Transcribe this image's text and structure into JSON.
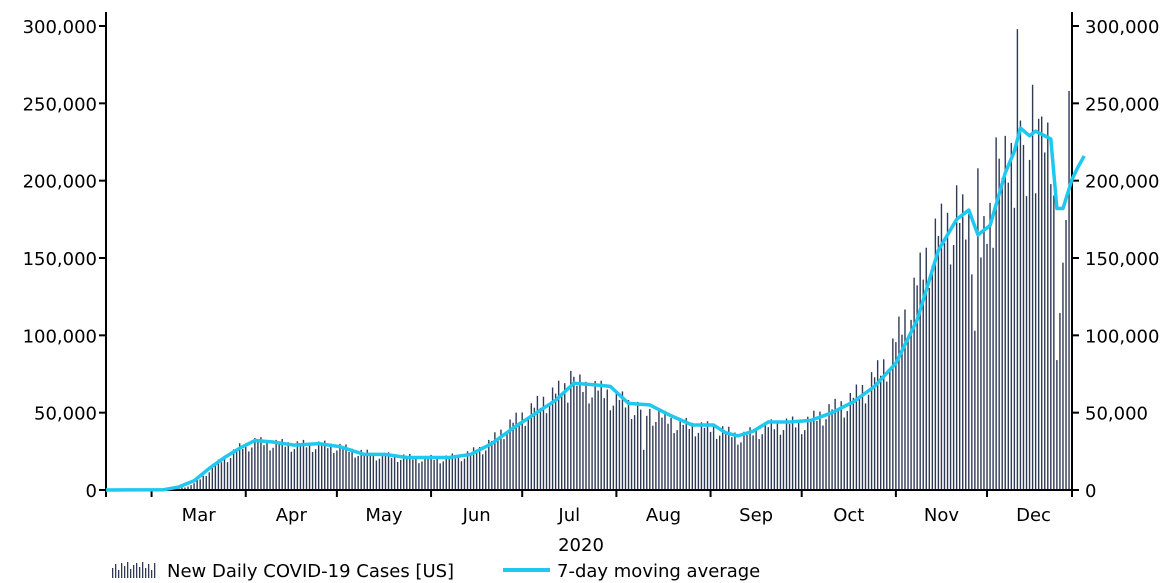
{
  "chart_data": {
    "type": "bar",
    "xlabel": "2020",
    "ylabel": "",
    "ylim": [
      0,
      300000
    ],
    "y_ticks": [
      0,
      50000,
      100000,
      150000,
      200000,
      250000,
      300000
    ],
    "y_tick_labels": [
      "0",
      "50,000",
      "100,000",
      "150,000",
      "200,000",
      "250,000",
      "300,000"
    ],
    "secondary_axis": true,
    "grid": false,
    "x_start_date": "2020-02-15",
    "x_end_date": "2020-12-28",
    "month_labels": [
      "Mar",
      "Apr",
      "May",
      "Jun",
      "Jul",
      "Aug",
      "Sep",
      "Oct",
      "Nov",
      "Dec"
    ],
    "legend_position": "bottom-left",
    "series": [
      {
        "name": "New Daily COVID-19 Cases [US]",
        "kind": "bar",
        "color": "#2f3a55",
        "anchors": [
          [
            "2020-02-15",
            0
          ],
          [
            "2020-03-01",
            30
          ],
          [
            "2020-03-06",
            100
          ],
          [
            "2020-03-10",
            1000
          ],
          [
            "2020-03-14",
            3000
          ],
          [
            "2020-03-18",
            9000
          ],
          [
            "2020-03-22",
            17000
          ],
          [
            "2020-03-26",
            22000
          ],
          [
            "2020-03-30",
            28000
          ],
          [
            "2020-04-04",
            32000
          ],
          [
            "2020-04-10",
            31000
          ],
          [
            "2020-04-17",
            30000
          ],
          [
            "2020-04-24",
            30000
          ],
          [
            "2020-05-01",
            29000
          ],
          [
            "2020-05-08",
            25000
          ],
          [
            "2020-05-15",
            23000
          ],
          [
            "2020-05-22",
            22000
          ],
          [
            "2020-05-29",
            21000
          ],
          [
            "2020-06-05",
            21000
          ],
          [
            "2020-06-12",
            23000
          ],
          [
            "2020-06-19",
            29000
          ],
          [
            "2020-06-26",
            42000
          ],
          [
            "2020-07-03",
            52000
          ],
          [
            "2020-07-10",
            62000
          ],
          [
            "2020-07-17",
            70000
          ],
          [
            "2020-07-24",
            68000
          ],
          [
            "2020-07-31",
            62000
          ],
          [
            "2020-08-07",
            55000
          ],
          [
            "2020-08-14",
            50000
          ],
          [
            "2020-08-21",
            44000
          ],
          [
            "2020-08-28",
            42000
          ],
          [
            "2020-09-04",
            40000
          ],
          [
            "2020-09-11",
            35000
          ],
          [
            "2020-09-18",
            41000
          ],
          [
            "2020-09-25",
            44000
          ],
          [
            "2020-10-02",
            44000
          ],
          [
            "2020-10-09",
            52000
          ],
          [
            "2020-10-16",
            58000
          ],
          [
            "2020-10-23",
            70000
          ],
          [
            "2020-10-30",
            88000
          ],
          [
            "2020-11-06",
            125000
          ],
          [
            "2020-11-13",
            165000
          ],
          [
            "2020-11-20",
            180000
          ],
          [
            "2020-11-25",
            175000
          ],
          [
            "2020-11-29",
            155000
          ],
          [
            "2020-12-04",
            200000
          ],
          [
            "2020-12-09",
            220000
          ],
          [
            "2020-12-13",
            230000
          ],
          [
            "2020-12-18",
            235000
          ],
          [
            "2020-12-22",
            215000
          ],
          [
            "2020-12-25",
            130000
          ],
          [
            "2020-12-28",
            205000
          ]
        ],
        "spikes": [
          [
            "2020-12-11",
            298000
          ],
          [
            "2020-12-16",
            262000
          ],
          [
            "2020-12-18",
            240000
          ],
          [
            "2020-11-27",
            103000
          ],
          [
            "2020-12-24",
            84000
          ],
          [
            "2020-12-26",
            147000
          ],
          [
            "2020-12-28",
            258000
          ],
          [
            "2020-12-14",
            190000
          ],
          [
            "2020-11-21",
            197000
          ],
          [
            "2020-11-28",
            208000
          ],
          [
            "2020-12-04",
            228000
          ],
          [
            "2020-07-17",
            77000
          ],
          [
            "2020-08-10",
            26000
          ]
        ]
      },
      {
        "name": "7-day moving average",
        "kind": "line",
        "color": "#1ec8ee",
        "points": [
          [
            "2020-02-15",
            0
          ],
          [
            "2020-03-05",
            200
          ],
          [
            "2020-03-10",
            2000
          ],
          [
            "2020-03-15",
            6000
          ],
          [
            "2020-03-20",
            14000
          ],
          [
            "2020-03-25",
            21000
          ],
          [
            "2020-03-30",
            27000
          ],
          [
            "2020-04-04",
            32000
          ],
          [
            "2020-04-10",
            31000
          ],
          [
            "2020-04-17",
            29000
          ],
          [
            "2020-04-25",
            30000
          ],
          [
            "2020-05-02",
            28000
          ],
          [
            "2020-05-10",
            23000
          ],
          [
            "2020-05-17",
            23000
          ],
          [
            "2020-05-24",
            21000
          ],
          [
            "2020-05-31",
            21000
          ],
          [
            "2020-06-07",
            21000
          ],
          [
            "2020-06-14",
            23000
          ],
          [
            "2020-06-21",
            30000
          ],
          [
            "2020-06-28",
            40000
          ],
          [
            "2020-07-05",
            49000
          ],
          [
            "2020-07-12",
            58000
          ],
          [
            "2020-07-18",
            69000
          ],
          [
            "2020-07-25",
            68000
          ],
          [
            "2020-07-30",
            67000
          ],
          [
            "2020-08-05",
            56000
          ],
          [
            "2020-08-12",
            55000
          ],
          [
            "2020-08-19",
            48000
          ],
          [
            "2020-08-26",
            42000
          ],
          [
            "2020-09-02",
            42000
          ],
          [
            "2020-09-06",
            37000
          ],
          [
            "2020-09-10",
            35000
          ],
          [
            "2020-09-15",
            38000
          ],
          [
            "2020-09-20",
            44000
          ],
          [
            "2020-09-27",
            44000
          ],
          [
            "2020-10-04",
            45000
          ],
          [
            "2020-10-11",
            50000
          ],
          [
            "2020-10-18",
            57000
          ],
          [
            "2020-10-25",
            67000
          ],
          [
            "2020-11-01",
            82000
          ],
          [
            "2020-11-08",
            110000
          ],
          [
            "2020-11-15",
            155000
          ],
          [
            "2020-11-21",
            175000
          ],
          [
            "2020-11-25",
            181000
          ],
          [
            "2020-11-28",
            165000
          ],
          [
            "2020-12-02",
            171000
          ],
          [
            "2020-12-07",
            205000
          ],
          [
            "2020-12-10",
            219000
          ],
          [
            "2020-12-12",
            234000
          ],
          [
            "2020-12-15",
            229000
          ],
          [
            "2020-12-17",
            232000
          ],
          [
            "2020-12-22",
            227000
          ],
          [
            "2020-12-24",
            182000
          ],
          [
            "2020-12-26",
            182000
          ],
          [
            "2020-12-29",
            201000
          ],
          [
            "2020-12-31",
            209000
          ],
          [
            "2021-01-02",
            216000
          ]
        ]
      }
    ]
  }
}
